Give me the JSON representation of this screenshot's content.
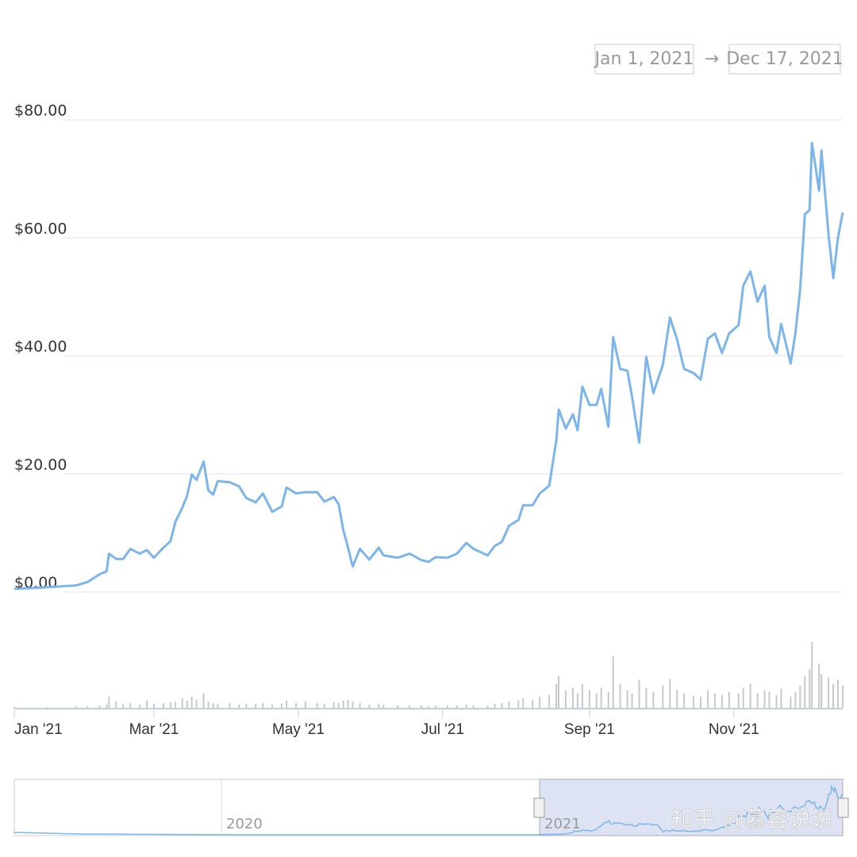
{
  "chart_data": {
    "type": "line",
    "range_start": "Jan 1, 2021",
    "range_separator": "→",
    "range_end": "Dec 17, 2021",
    "watermark": "知乎 @慕容说说",
    "navigator_labels": [
      "2020",
      "2021"
    ],
    "x": [
      "2021-01-01",
      "2021-01-15",
      "2021-01-27",
      "2021-02-01",
      "2021-02-06",
      "2021-02-09",
      "2021-02-10",
      "2021-02-13",
      "2021-02-16",
      "2021-02-19",
      "2021-02-23",
      "2021-02-26",
      "2021-03-01",
      "2021-03-05",
      "2021-03-08",
      "2021-03-10",
      "2021-03-13",
      "2021-03-15",
      "2021-03-17",
      "2021-03-19",
      "2021-03-22",
      "2021-03-24",
      "2021-03-26",
      "2021-03-28",
      "2021-04-02",
      "2021-04-06",
      "2021-04-09",
      "2021-04-13",
      "2021-04-16",
      "2021-04-20",
      "2021-04-24",
      "2021-04-26",
      "2021-04-30",
      "2021-05-04",
      "2021-05-09",
      "2021-05-12",
      "2021-05-16",
      "2021-05-18",
      "2021-05-20",
      "2021-05-22",
      "2021-05-24",
      "2021-05-27",
      "2021-05-31",
      "2021-06-04",
      "2021-06-06",
      "2021-06-12",
      "2021-06-17",
      "2021-06-22",
      "2021-06-25",
      "2021-06-28",
      "2021-07-03",
      "2021-07-07",
      "2021-07-11",
      "2021-07-14",
      "2021-07-20",
      "2021-07-23",
      "2021-07-26",
      "2021-07-29",
      "2021-08-02",
      "2021-08-04",
      "2021-08-08",
      "2021-08-11",
      "2021-08-15",
      "2021-08-18",
      "2021-08-19",
      "2021-08-22",
      "2021-08-25",
      "2021-08-27",
      "2021-08-29",
      "2021-09-01",
      "2021-09-04",
      "2021-09-06",
      "2021-09-09",
      "2021-09-11",
      "2021-09-14",
      "2021-09-17",
      "2021-09-19",
      "2021-09-22",
      "2021-09-25",
      "2021-09-28",
      "2021-10-02",
      "2021-10-05",
      "2021-10-08",
      "2021-10-11",
      "2021-10-15",
      "2021-10-18",
      "2021-10-21",
      "2021-10-24",
      "2021-10-27",
      "2021-10-30",
      "2021-11-03",
      "2021-11-05",
      "2021-11-08",
      "2021-11-11",
      "2021-11-14",
      "2021-11-16",
      "2021-11-19",
      "2021-11-21",
      "2021-11-25",
      "2021-11-27",
      "2021-11-29",
      "2021-12-01",
      "2021-12-03",
      "2021-12-04",
      "2021-12-07",
      "2021-12-08",
      "2021-12-11",
      "2021-12-13",
      "2021-12-15",
      "2021-12-17"
    ],
    "series": [
      {
        "color": "#7cb5ec",
        "values": [
          0.5,
          0.8,
          1.1,
          1.7,
          3.0,
          3.5,
          6.5,
          5.6,
          5.6,
          7.3,
          6.5,
          7.1,
          5.8,
          7.5,
          8.6,
          11.8,
          14.3,
          16.3,
          19.9,
          19.0,
          22.1,
          17.2,
          16.5,
          18.8,
          18.6,
          17.9,
          15.9,
          15.2,
          16.7,
          13.6,
          14.5,
          17.7,
          16.7,
          16.9,
          16.9,
          15.3,
          16.1,
          14.9,
          10.5,
          7.5,
          4.3,
          7.3,
          5.5,
          7.5,
          6.2,
          5.8,
          6.5,
          5.4,
          5.1,
          5.9,
          5.8,
          6.5,
          8.3,
          7.3,
          6.2,
          7.8,
          8.5,
          11.2,
          12.2,
          14.7,
          14.7,
          16.7,
          18.0,
          25.7,
          30.9,
          27.7,
          30.1,
          27.4,
          34.8,
          31.7,
          31.7,
          34.4,
          28.0,
          43.2,
          37.8,
          37.5,
          33.1,
          25.3,
          39.8,
          33.7,
          38.5,
          46.5,
          42.8,
          37.8,
          37.1,
          36.0,
          42.9,
          43.8,
          40.5,
          43.8,
          45.2,
          51.9,
          54.3,
          49.2,
          51.9,
          43.2,
          40.5,
          45.4,
          38.7,
          43.8,
          51.2,
          64.0,
          64.7,
          76.1,
          68.0,
          74.8,
          60.6,
          53.2,
          60.0,
          64.3
        ]
      }
    ],
    "volume": {
      "color": "#c8c8c8",
      "values": [
        1,
        1,
        2,
        2,
        3,
        4,
        14,
        8,
        5,
        6,
        4,
        9,
        5,
        6,
        7,
        8,
        12,
        9,
        14,
        10,
        18,
        8,
        6,
        5,
        6,
        4,
        5,
        5,
        6,
        4,
        5,
        9,
        6,
        8,
        6,
        5,
        7,
        6,
        9,
        10,
        8,
        6,
        4,
        5,
        4,
        3,
        3,
        3,
        2,
        3,
        3,
        3,
        4,
        3,
        3,
        5,
        6,
        8,
        9,
        12,
        10,
        14,
        16,
        30,
        40,
        22,
        25,
        18,
        30,
        22,
        18,
        25,
        20,
        64,
        30,
        22,
        18,
        35,
        25,
        20,
        28,
        36,
        22,
        18,
        15,
        14,
        22,
        18,
        16,
        20,
        18,
        25,
        30,
        18,
        22,
        20,
        16,
        24,
        14,
        20,
        28,
        40,
        48,
        82,
        55,
        42,
        38,
        30,
        35,
        28
      ]
    },
    "xlim": [
      "2021-01-01",
      "2021-12-17"
    ],
    "xticks": [
      {
        "value": "2021-01-01",
        "label": "Jan '21"
      },
      {
        "value": "2021-03-01",
        "label": "Mar '21"
      },
      {
        "value": "2021-05-01",
        "label": "May '21"
      },
      {
        "value": "2021-07-01",
        "label": "Jul '21"
      },
      {
        "value": "2021-09-01",
        "label": "Sep '21"
      },
      {
        "value": "2021-11-01",
        "label": "Nov '21"
      }
    ],
    "ylim": [
      0,
      80
    ],
    "yticks": [
      {
        "value": 0,
        "label": "$0.00"
      },
      {
        "value": 20,
        "label": "$20.00"
      },
      {
        "value": 40,
        "label": "$40.00"
      },
      {
        "value": 60,
        "label": "$60.00"
      },
      {
        "value": 80,
        "label": "$80.00"
      }
    ],
    "grid": true
  }
}
